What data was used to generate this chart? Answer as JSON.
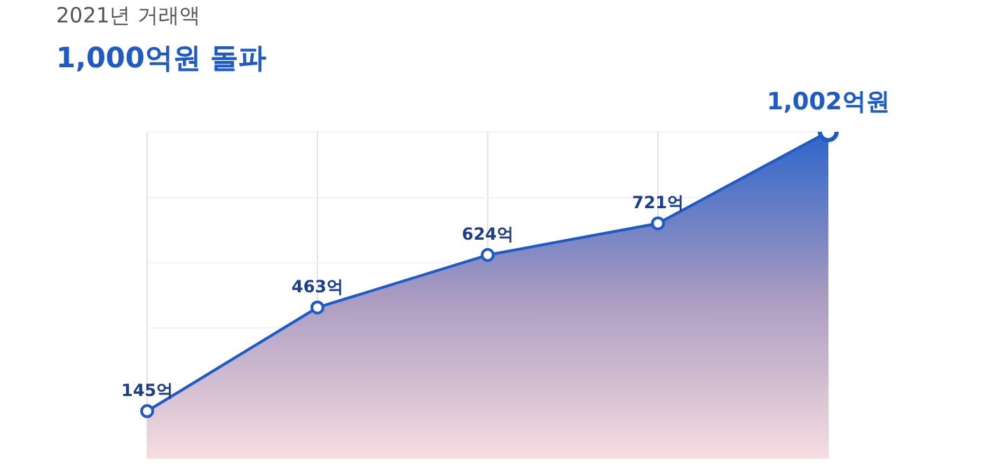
{
  "chart_data": {
    "type": "area",
    "title": "2021년 거래액",
    "subtitle": "1,000억원 돌파",
    "categories": [
      null,
      null,
      null,
      null,
      null
    ],
    "series": [
      {
        "color": "#1f5bc6",
        "values": [
          145,
          463,
          624,
          721,
          1002
        ],
        "value_labels": [
          "145억",
          "463억",
          "624억",
          "721억",
          "1,002억원"
        ]
      }
    ],
    "marker": "circle",
    "grid": true,
    "legend": false,
    "tick_labels": false
  }
}
